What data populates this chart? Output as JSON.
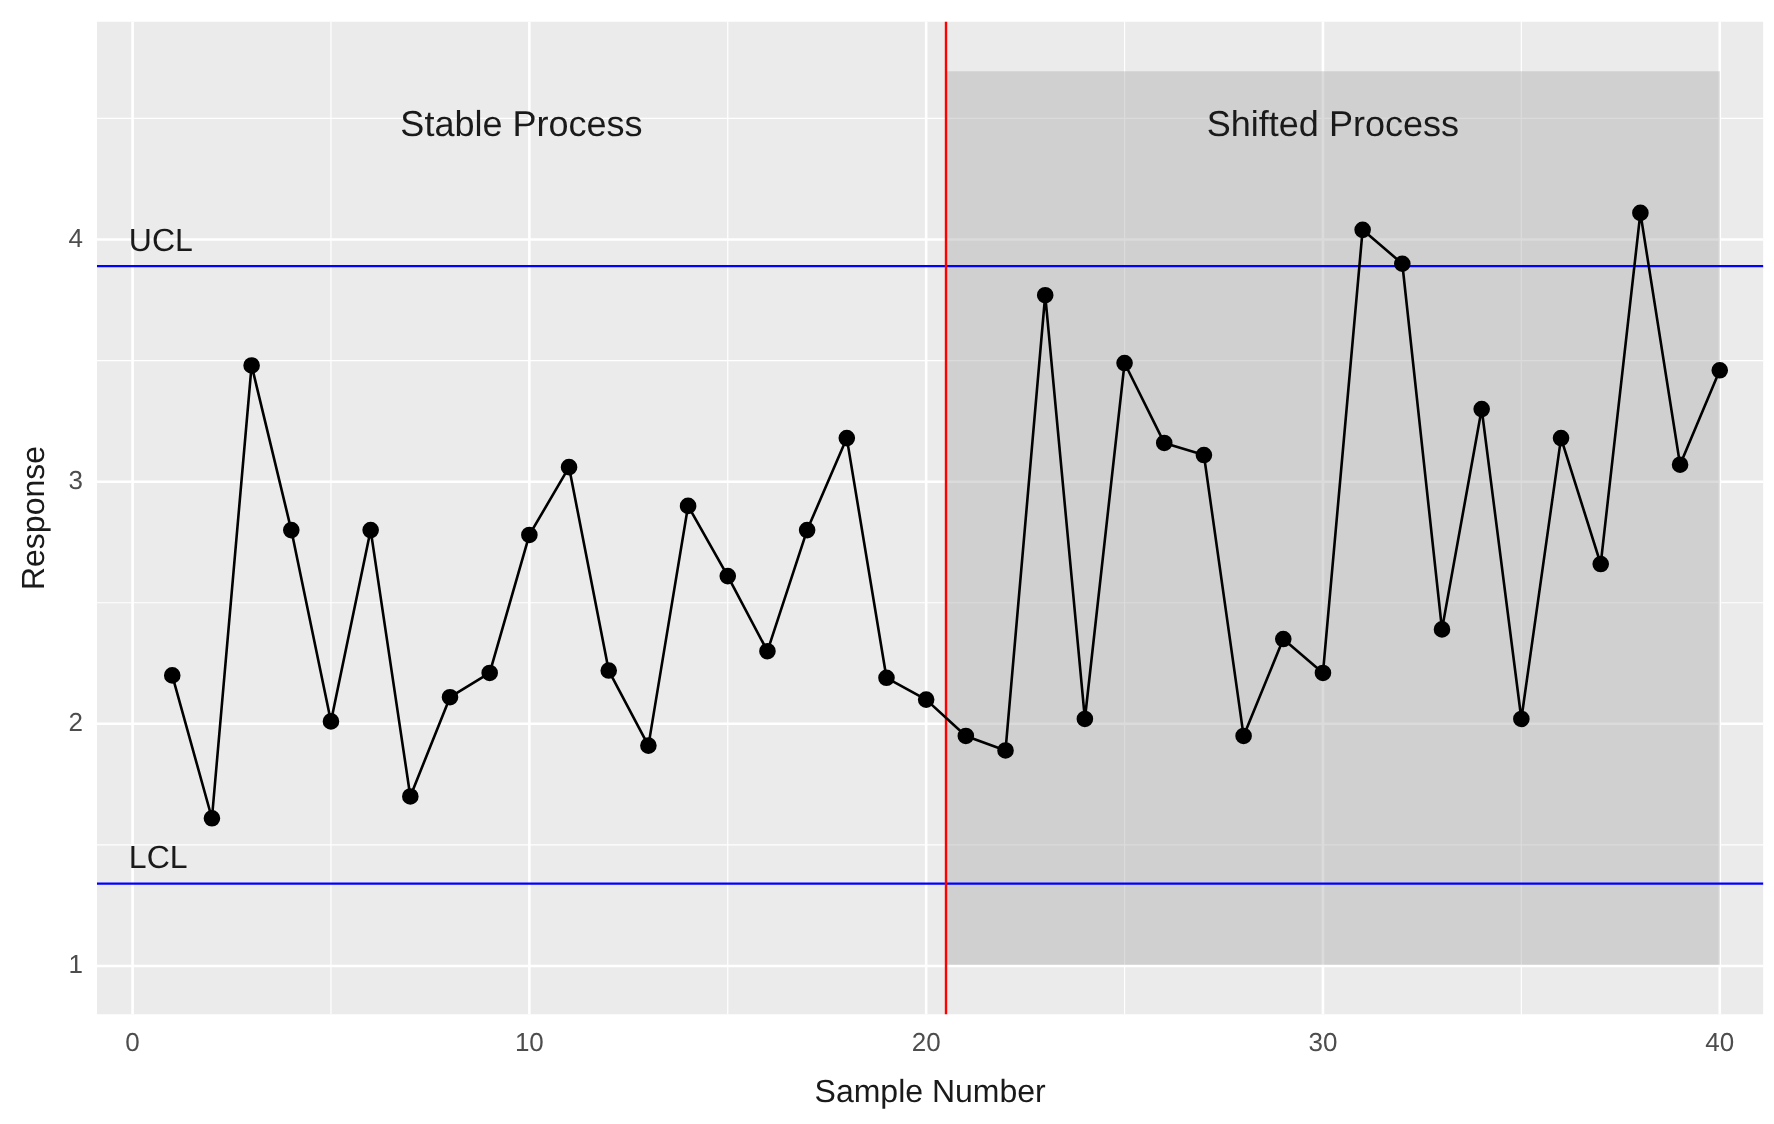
{
  "chart_data": {
    "type": "line",
    "xlabel": "Sample Number",
    "ylabel": "Response",
    "x": [
      1,
      2,
      3,
      4,
      5,
      6,
      7,
      8,
      9,
      10,
      11,
      12,
      13,
      14,
      15,
      16,
      17,
      18,
      19,
      20,
      21,
      22,
      23,
      24,
      25,
      26,
      27,
      28,
      29,
      30,
      31,
      32,
      33,
      34,
      35,
      36,
      37,
      38,
      39,
      40
    ],
    "series": [
      {
        "color": "#000000",
        "values": [
          2.2,
          1.61,
          3.48,
          2.8,
          2.01,
          2.8,
          1.7,
          2.11,
          2.21,
          2.78,
          3.06,
          2.22,
          1.91,
          2.9,
          2.61,
          2.3,
          2.8,
          3.18,
          2.19,
          2.1,
          1.95,
          1.89,
          3.77,
          2.02,
          3.49,
          3.16,
          3.11,
          1.95,
          2.35,
          2.21,
          4.04,
          3.9,
          2.39,
          3.3,
          2.02,
          3.18,
          2.66,
          4.11,
          3.07,
          3.46
        ]
      }
    ],
    "xlim": [
      -0.9,
      41.1
    ],
    "xticks": [
      0,
      10,
      20,
      30,
      40
    ],
    "ylim": [
      0.8,
      4.9
    ],
    "yticks": [
      1,
      2,
      3,
      4
    ],
    "ref_lines": [
      {
        "axis": "y",
        "value": 3.89,
        "label": "UCL",
        "color": "#0000ff"
      },
      {
        "axis": "y",
        "value": 1.34,
        "label": "LCL",
        "color": "#0000ff"
      },
      {
        "axis": "x",
        "value": 20.5,
        "color": "#ff0000"
      }
    ],
    "bands": [
      {
        "axis": "x",
        "from": 20.5,
        "to": 40,
        "color": "#b0b0b0"
      }
    ],
    "annotations": [
      "Stable Process",
      "Shifted Process"
    ],
    "grid": true,
    "legend": false,
    "marker": "circle",
    "line_style": "solid"
  }
}
